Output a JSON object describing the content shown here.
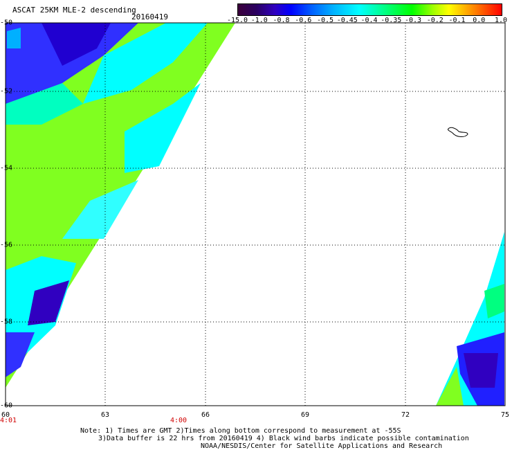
{
  "header": {
    "title": "ASCAT 25KM MLE-2 descending",
    "date": "20160419"
  },
  "colorbar": {
    "labels": [
      "-15.0",
      "-1.0",
      "-0.8",
      "-0.6",
      "-0.5",
      "-0.45",
      "-0.4",
      "-0.35",
      "-0.3",
      "-0.2",
      "-0.1",
      "0.0",
      "1.0"
    ],
    "colors": [
      "#3a003a",
      "#2a0060",
      "#3000c0",
      "#0000ff",
      "#0060ff",
      "#00b0ff",
      "#00ffff",
      "#00ff80",
      "#00ff00",
      "#a0ff00",
      "#ffff00",
      "#ff8000",
      "#ff0000"
    ]
  },
  "map": {
    "y_labels": [
      "-50",
      "-52",
      "-54",
      "-56",
      "-58",
      "-60"
    ],
    "x_labels": [
      "60",
      "63",
      "66",
      "69",
      "72",
      "75"
    ],
    "time_labels": [
      "4:01",
      "4:00"
    ]
  },
  "footer": {
    "line1": "Note: 1) Times are GMT 2)Times along bottom correspond to measurement at -55S",
    "line2": "3)Data buffer is 22 hrs from 20160419 4) Black wind barbs indicate possible contamination",
    "line3": "NOAA/NESDIS/Center for Satellite Applications and Research"
  }
}
